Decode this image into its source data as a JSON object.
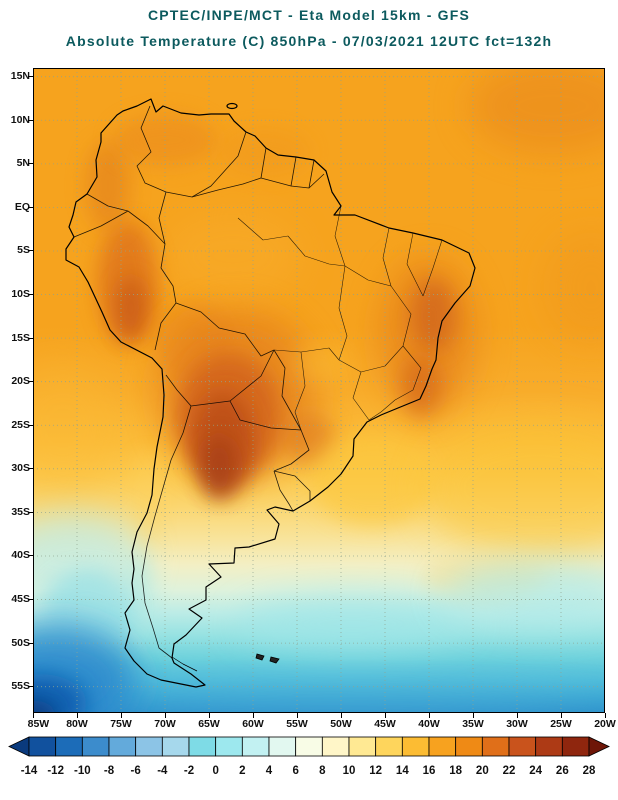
{
  "header": {
    "line1": "CPTEC/INPE/MCT -  Eta Model 15km - GFS",
    "line2": "Absolute Temperature (C) 850hPa - 07/03/2021 12UTC fct=132h",
    "title_color": "#0c5a5e"
  },
  "map": {
    "lat_labels": [
      "15N",
      "10N",
      "5N",
      "EQ",
      "5S",
      "10S",
      "15S",
      "20S",
      "25S",
      "30S",
      "35S",
      "40S",
      "45S",
      "50S",
      "55S"
    ],
    "lon_labels": [
      "85W",
      "80W",
      "75W",
      "70W",
      "65W",
      "60W",
      "55W",
      "50W",
      "45W",
      "40W",
      "35W",
      "30W",
      "25W",
      "20W"
    ]
  },
  "colorbar": {
    "unit": "C",
    "tick_labels": [
      "-14",
      "-12",
      "-10",
      "-8",
      "-6",
      "-4",
      "-2",
      "0",
      "2",
      "4",
      "6",
      "8",
      "10",
      "12",
      "14",
      "16",
      "18",
      "20",
      "22",
      "24",
      "26",
      "28"
    ],
    "colors": [
      "#0a3a7d",
      "#11519e",
      "#1c6cb8",
      "#3c8ccc",
      "#63aadb",
      "#8cc4e6",
      "#a6d8ec",
      "#7edbe6",
      "#9de8ee",
      "#c2f1f2",
      "#e2f8f0",
      "#f8fce6",
      "#fff6c8",
      "#ffe993",
      "#fed55c",
      "#fcbc33",
      "#f7a21f",
      "#ef8a15",
      "#e06f19",
      "#c9531c",
      "#ad3a15",
      "#8f260e",
      "#6e1607"
    ]
  },
  "chart_data": {
    "type": "heatmap",
    "title": "Absolute Temperature (C) 850hPa",
    "source": "CPTEC/INPE/MCT",
    "model": "Eta Model 15km - GFS",
    "valid": "07/03/2021 12UTC fct=132h",
    "scale_values_c": [
      -14,
      -12,
      -10,
      -8,
      -6,
      -4,
      -2,
      0,
      2,
      4,
      6,
      8,
      10,
      12,
      14,
      16,
      18,
      20,
      22,
      24,
      26,
      28
    ],
    "lat_range": [
      "15N",
      "55S"
    ],
    "lon_range": [
      "85W",
      "20W"
    ]
  }
}
